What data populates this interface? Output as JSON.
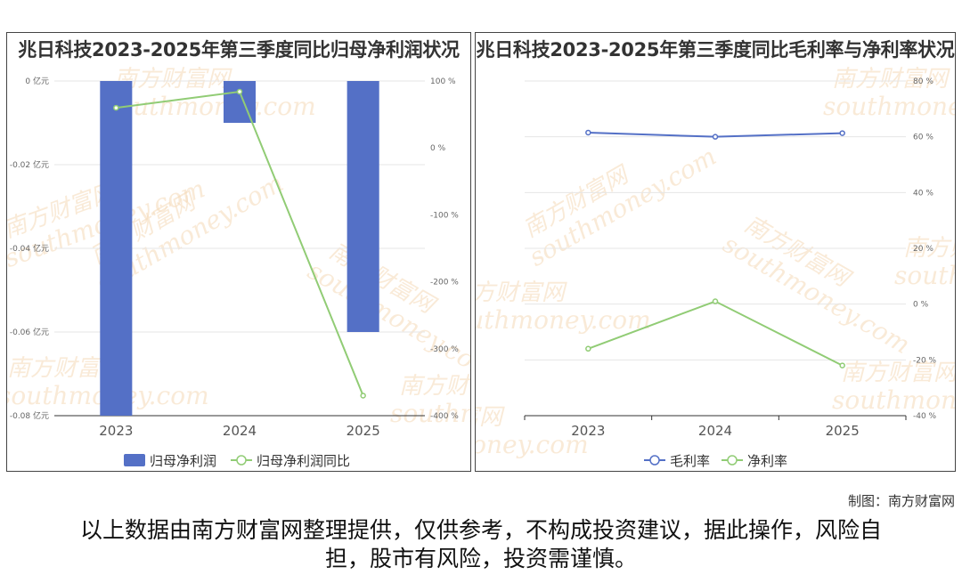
{
  "watermark": {
    "cn": "南方财富网",
    "en": "southmoney.com"
  },
  "credit": "制图：南方财富网",
  "disclaimer": "以上数据由南方财富网整理提供，仅供参考，不构成投资建议，据此操作，风险自担，股市有风险，投资需谨慎。",
  "colors": {
    "bar": "#5470c6",
    "line_green": "#91cc75",
    "line_blue": "#5470c6",
    "watermark": "#f5d9b8"
  },
  "chart_data": [
    {
      "type": "bar+line",
      "title": "兆日科技2023-2025年第三季度同比归母净利润状况",
      "categories": [
        "2023",
        "2024",
        "2025"
      ],
      "series": [
        {
          "name": "归母净利润",
          "type": "bar",
          "axis": "left",
          "values": [
            -0.08,
            -0.01,
            -0.06
          ]
        },
        {
          "name": "归母净利润同比",
          "type": "line",
          "axis": "right",
          "values": [
            60,
            84,
            -370
          ]
        }
      ],
      "y_left": {
        "min": -0.08,
        "max": 0,
        "ticks": [
          "0 亿元",
          "-0.02 亿元",
          "-0.04 亿元",
          "-0.06 亿元",
          "-0.08 亿元"
        ],
        "tick_values": [
          0,
          -0.02,
          -0.04,
          -0.06,
          -0.08
        ]
      },
      "y_right": {
        "min": -400,
        "max": 100,
        "ticks": [
          "100 %",
          "0 %",
          "-100 %",
          "-200 %",
          "-300 %",
          "-400 %"
        ],
        "tick_values": [
          100,
          0,
          -100,
          -200,
          -300,
          -400
        ]
      },
      "legend": {
        "position": "bottom",
        "items": [
          "归母净利润",
          "归母净利润同比"
        ]
      },
      "grid": true
    },
    {
      "type": "line",
      "title": "兆日科技2023-2025年第三季度同比毛利率与净利率状况",
      "categories": [
        "2023",
        "2024",
        "2025"
      ],
      "series": [
        {
          "name": "毛利率",
          "values": [
            61.5,
            60,
            61.3
          ]
        },
        {
          "name": "净利率",
          "values": [
            -16,
            1,
            -22
          ]
        }
      ],
      "y_right": {
        "min": -40,
        "max": 80,
        "ticks": [
          "80 %",
          "60 %",
          "40 %",
          "20 %",
          "0 %",
          "-20 %",
          "-40 %"
        ],
        "tick_values": [
          80,
          60,
          40,
          20,
          0,
          -20,
          -40
        ]
      },
      "legend": {
        "position": "bottom",
        "items": [
          "毛利率",
          "净利率"
        ]
      },
      "grid": true
    }
  ]
}
